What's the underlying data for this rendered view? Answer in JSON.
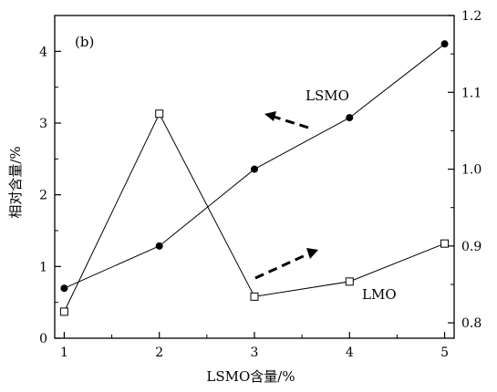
{
  "chart_data": {
    "type": "line",
    "panel_label": "(b)",
    "xlabel": "LSMO含量/%",
    "ylabel": "相对含量/%",
    "xlim": [
      0.9,
      5.1
    ],
    "ylim_left": [
      0,
      4.5
    ],
    "ylim_right": [
      0.78,
      1.2
    ],
    "x_ticks": [
      1,
      2,
      3,
      4,
      5
    ],
    "y_ticks_left": [
      0,
      1,
      2,
      3,
      4
    ],
    "y_ticks_right": [
      0.8,
      0.9,
      1.0,
      1.1,
      1.2
    ],
    "y_tick_labels_right": [
      "0.8",
      "0.9",
      "1.0",
      "1.1",
      "1.2"
    ],
    "series": [
      {
        "name": "LSMO",
        "axis": "right",
        "marker": "filled-circle",
        "x": [
          1,
          2,
          3,
          4,
          5
        ],
        "y": [
          0.845,
          0.9,
          1.0,
          1.067,
          1.163
        ]
      },
      {
        "name": "LMO",
        "axis": "left",
        "marker": "open-square",
        "x": [
          1,
          2,
          3,
          4,
          5
        ],
        "y": [
          0.37,
          3.13,
          0.58,
          0.79,
          1.32
        ]
      }
    ]
  }
}
